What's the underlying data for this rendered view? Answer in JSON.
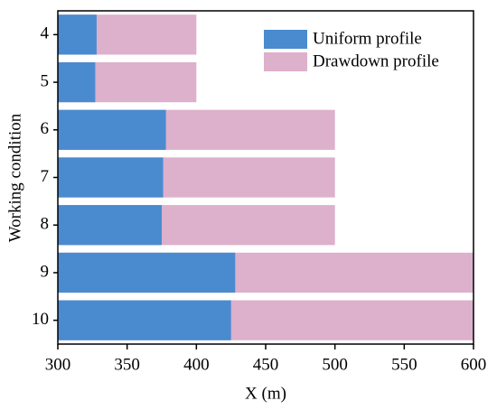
{
  "chart_data": {
    "type": "overlapping-hbar",
    "categories": [
      "4",
      "5",
      "6",
      "7",
      "8",
      "9",
      "10"
    ],
    "series": [
      {
        "name": "Uniform profile",
        "color": "#4a8bd0",
        "values": [
          328,
          327,
          378,
          376,
          375,
          428,
          425
        ]
      },
      {
        "name": "Drawdown profile",
        "color": "#ddb0cb",
        "values": [
          400,
          400,
          500,
          500,
          500,
          600,
          600
        ]
      }
    ],
    "xlabel": "X (m)",
    "ylabel": "Working condition",
    "xlim": [
      300,
      600
    ],
    "xticks": [
      300,
      350,
      400,
      450,
      500,
      550,
      600
    ],
    "legend": "upper right"
  }
}
